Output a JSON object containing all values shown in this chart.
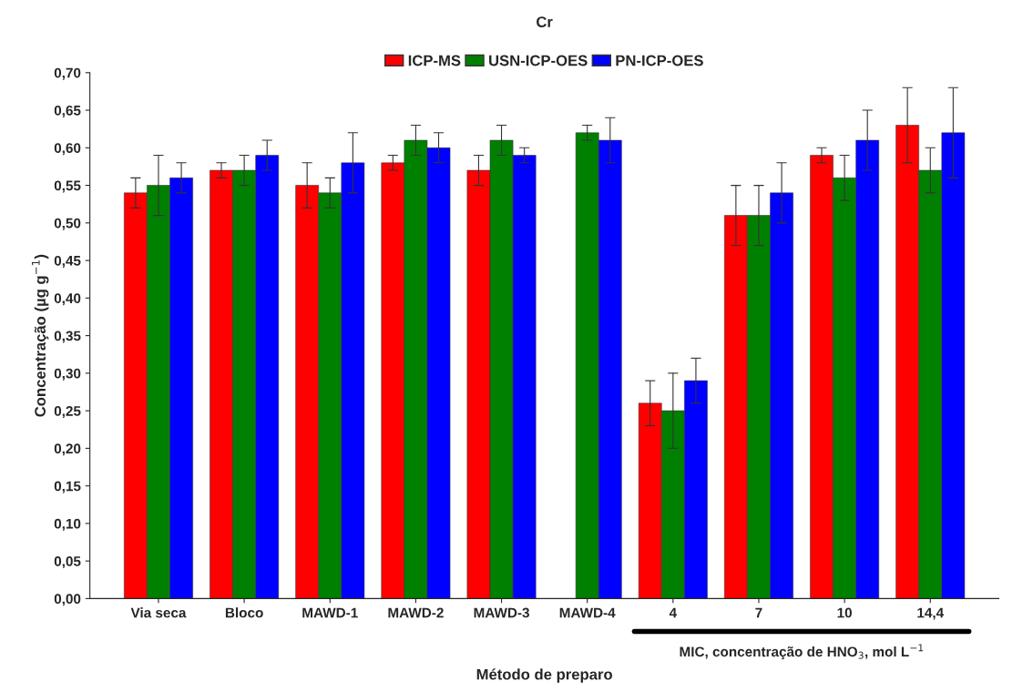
{
  "chart_data": {
    "type": "bar",
    "title": "Cr",
    "xlabel": "Método de preparo",
    "ylabel": "Concentração (µg g$^{−1}$)",
    "categories": [
      "Via seca",
      "Bloco",
      "MAWD-1",
      "MAWD-2",
      "MAWD-3",
      "MAWD-4",
      "4",
      "7",
      "10",
      "14,4"
    ],
    "series": [
      {
        "name": "ICP-MS",
        "color": "#ff0000",
        "values": [
          0.54,
          0.57,
          0.55,
          0.58,
          0.57,
          null,
          0.26,
          0.51,
          0.59,
          0.63
        ],
        "errors": [
          0.02,
          0.01,
          0.03,
          0.01,
          0.02,
          null,
          0.03,
          0.04,
          0.01,
          0.05
        ]
      },
      {
        "name": "USN-ICP-OES",
        "color": "#008000",
        "values": [
          0.55,
          0.57,
          0.54,
          0.61,
          0.61,
          0.62,
          0.25,
          0.51,
          0.56,
          0.57
        ],
        "errors": [
          0.04,
          0.02,
          0.02,
          0.02,
          0.02,
          0.01,
          0.05,
          0.04,
          0.03,
          0.03
        ]
      },
      {
        "name": "PN-ICP-OES",
        "color": "#0000ff",
        "values": [
          0.56,
          0.59,
          0.58,
          0.6,
          0.59,
          0.61,
          0.29,
          0.54,
          0.61,
          0.62
        ],
        "errors": [
          0.02,
          0.02,
          0.04,
          0.02,
          0.01,
          0.03,
          0.03,
          0.04,
          0.04,
          0.06
        ]
      }
    ],
    "annotations": [
      "MIC, concentração de HNO$_{3}$, mol L$^{−1}$"
    ],
    "ylim": [
      0,
      0.7
    ],
    "yticks": [
      {
        "value": 0,
        "label": "0,00"
      },
      {
        "value": 0.05,
        "label": "0,05"
      },
      {
        "value": 0.1,
        "label": "0,10"
      },
      {
        "value": 0.15,
        "label": "0,15"
      },
      {
        "value": 0.2,
        "label": "0,20"
      },
      {
        "value": 0.25,
        "label": "0,25"
      },
      {
        "value": 0.3,
        "label": "0,30"
      },
      {
        "value": 0.35,
        "label": "0,35"
      },
      {
        "value": 0.4,
        "label": "0,40"
      },
      {
        "value": 0.45,
        "label": "0,45"
      },
      {
        "value": 0.5,
        "label": "0,50"
      },
      {
        "value": 0.55,
        "label": "0,55"
      },
      {
        "value": 0.6,
        "label": "0,60"
      },
      {
        "value": 0.65,
        "label": "0,65"
      },
      {
        "value": 0.7,
        "label": "0,70"
      }
    ],
    "legend": "top",
    "grid": false
  }
}
